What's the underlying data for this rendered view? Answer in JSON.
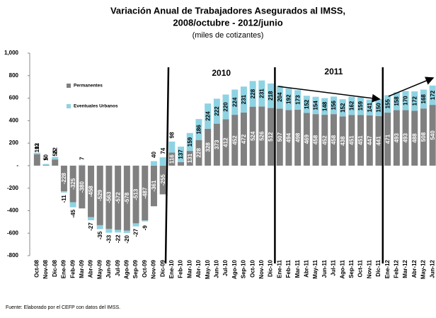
{
  "chart_data": {
    "type": "bar",
    "stacked": true,
    "title_lines": [
      "Variación Anual de Trabajadores Asegurados al IMSS,",
      "2008/octubre - 2012/junio"
    ],
    "subtitle": "(miles de cotizantes)",
    "categories": [
      "Oct-08",
      "Nov-08",
      "Dic-08",
      "Ene-09",
      "Feb-09",
      "Mar-09",
      "Abr-09",
      "May-09",
      "Jun-09",
      "Jul-09",
      "Ago-09",
      "Sep-09",
      "Oct-09",
      "Nov-09",
      "Dic-09",
      "Ene-10",
      "Feb-10",
      "Mar-10",
      "Abr-10",
      "May-10",
      "Jun-10",
      "Jul-10",
      "Ago-10",
      "Sep-10",
      "Oct-10",
      "Nov-10",
      "Dic-10",
      "Ene-11",
      "Feb-11",
      "Mar-11",
      "Abr-11",
      "May-11",
      "Jun-11",
      "Jul-11",
      "Ago-11",
      "Sep-11",
      "Oct-11",
      "Nov-11",
      "Dic-11",
      "Ene-12",
      "Feb-12",
      "Mar-12",
      "Abr-12",
      "May-12",
      "Jun-12"
    ],
    "series": [
      {
        "name": "Permanentes",
        "color": "#808080",
        "values": [
          102,
          5,
          55,
          -228,
          -325,
          -380,
          -458,
          -529,
          -563,
          -572,
          -578,
          -513,
          -487,
          -361,
          -255,
          116,
          32,
          131,
          228,
          328,
          373,
          412,
          452,
          472,
          524,
          526,
          512,
          507,
          494,
          498,
          469,
          458,
          452,
          458,
          438,
          451,
          451,
          447,
          441,
          471,
          493,
          493,
          488,
          508,
          540
        ]
      },
      {
        "name": "Eventuales Urbanos",
        "color": "#8fd3e3",
        "values": [
          13,
          10,
          22,
          -11,
          -45,
          7,
          -27,
          -35,
          -33,
          -22,
          -20,
          -27,
          -9,
          40,
          74,
          98,
          137,
          159,
          186,
          224,
          222,
          220,
          224,
          231,
          228,
          231,
          218,
          204,
          192,
          173,
          152,
          154,
          148,
          156,
          152,
          162,
          159,
          141,
          150,
          155,
          158,
          170,
          172,
          168,
          172
        ]
      }
    ],
    "ylim": [
      -800,
      1000
    ],
    "yticks": [
      {
        "value": 1000,
        "label": "1,000"
      },
      800,
      600,
      400,
      200,
      {
        "value": 0,
        "label": "-"
      },
      -200,
      -400,
      -600,
      -800
    ],
    "annotations": [
      "2010",
      "2011"
    ],
    "source": "Fuente: Elaborado por el CEFP con datos del IMSS.",
    "legend": "upper left"
  }
}
